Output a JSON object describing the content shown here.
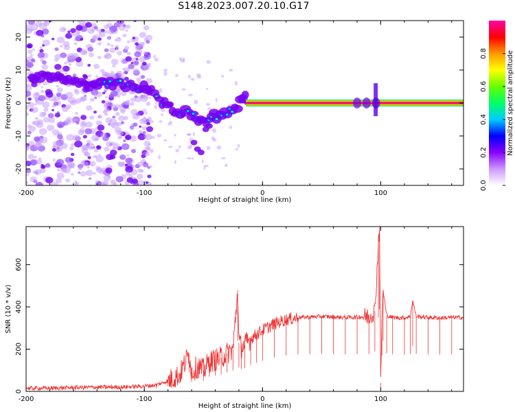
{
  "title": "S148.2023.007.20.10.G17",
  "colors": {
    "accent": "#ee3333",
    "axis": "#000000"
  },
  "chart_data": [
    {
      "type": "heatmap",
      "xlabel": "Height of straight line (km)",
      "ylabel": "Frequency (Hz)",
      "xlim": [
        -200,
        170
      ],
      "ylim": [
        -25,
        25
      ],
      "xticks": [
        -200,
        -100,
        0,
        100
      ],
      "yticks": [
        -20,
        -10,
        0,
        10,
        20
      ],
      "colorbar": {
        "label": "Normalized spectral amplitude",
        "range": [
          0,
          1
        ],
        "ticks": [
          "0.0",
          "0.2",
          "0.4",
          "0.6",
          "0.8"
        ],
        "palette": [
          "#ffffff",
          "#cc99ff",
          "#8800ff",
          "#0000ff",
          "#00ccff",
          "#00ff66",
          "#66ff00",
          "#ffff00",
          "#ff9900",
          "#ff0000",
          "#ff00aa"
        ]
      },
      "ridge": [
        {
          "x": -195,
          "f": 8
        },
        {
          "x": -170,
          "f": 8
        },
        {
          "x": -150,
          "f": 6
        },
        {
          "x": -130,
          "f": 6
        },
        {
          "x": -110,
          "f": 5
        },
        {
          "x": -95,
          "f": 4
        },
        {
          "x": -85,
          "f": 0
        },
        {
          "x": -75,
          "f": -2
        },
        {
          "x": -60,
          "f": -3
        },
        {
          "x": -50,
          "f": -6
        },
        {
          "x": -40,
          "f": -4
        },
        {
          "x": -30,
          "f": -3
        },
        {
          "x": -22,
          "f": -1
        },
        {
          "x": -15,
          "f": 2
        },
        {
          "x": -12,
          "f": 0
        },
        {
          "x": 0,
          "f": 0
        },
        {
          "x": 50,
          "f": 0
        },
        {
          "x": 100,
          "f": 0
        },
        {
          "x": 170,
          "f": 0
        }
      ]
    },
    {
      "type": "line",
      "xlabel": "Height of straight line (km)",
      "ylabel": "SNR (10 * v/v)",
      "xlim": [
        -200,
        170
      ],
      "ylim": [
        0,
        780
      ],
      "xticks": [
        -200,
        -100,
        0,
        100
      ],
      "yticks": [
        0,
        200,
        400,
        600
      ],
      "series": [
        {
          "color": "#ee3333",
          "x": [
            -200,
            -180,
            -160,
            -140,
            -120,
            -100,
            -90,
            -80,
            -70,
            -62,
            -60,
            -55,
            -50,
            -45,
            -40,
            -35,
            -30,
            -25,
            -21,
            -20,
            -18,
            -15,
            -10,
            -5,
            0,
            10,
            20,
            30,
            40,
            50,
            60,
            70,
            80,
            90,
            95,
            98,
            99,
            100,
            101,
            102,
            105,
            110,
            120,
            125,
            127,
            130,
            140,
            150,
            160,
            170
          ],
          "values": [
            15,
            15,
            18,
            20,
            20,
            25,
            30,
            50,
            80,
            180,
            90,
            120,
            100,
            140,
            150,
            160,
            180,
            200,
            480,
            230,
            210,
            220,
            250,
            270,
            290,
            320,
            340,
            350,
            352,
            355,
            352,
            350,
            352,
            355,
            380,
            700,
            780,
            40,
            340,
            480,
            360,
            350,
            348,
            355,
            430,
            355,
            350,
            348,
            350,
            350
          ]
        }
      ]
    }
  ]
}
